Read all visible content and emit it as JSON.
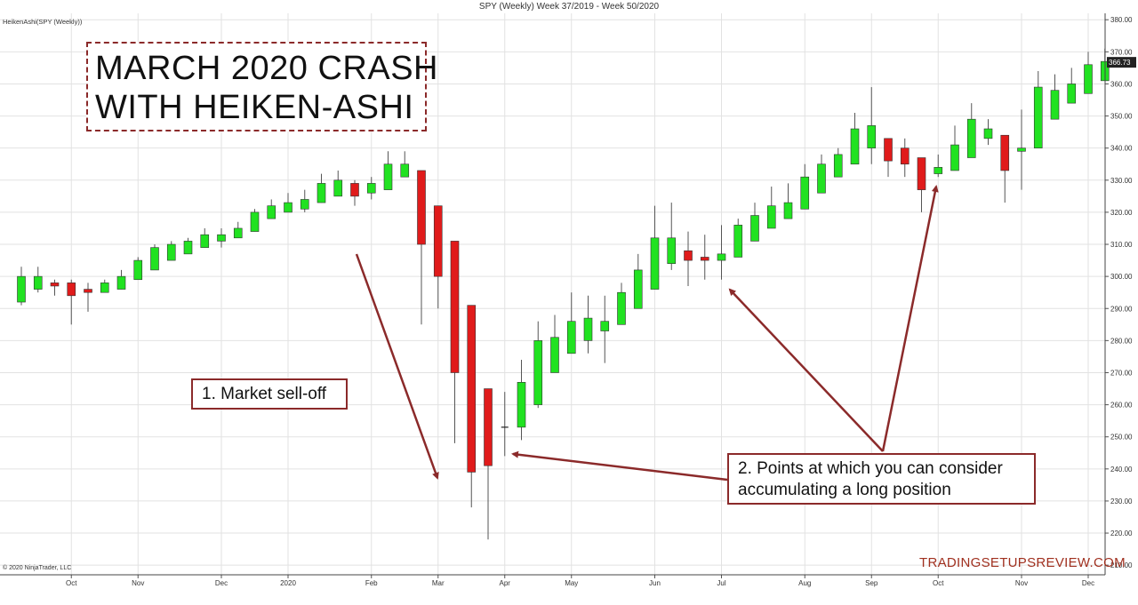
{
  "header": {
    "chart_title": "SPY (Weekly)  Week 37/2019 - Week 50/2020",
    "indicator_label": "HeikenAshi(SPY (Weekly))",
    "copyright": "© 2020 NinjaTrader, LLC",
    "watermark": "TRADINGSETUPSREVIEW.COM"
  },
  "annotations": {
    "title_line1": "MARCH 2020 CRASH",
    "title_line2": "WITH HEIKEN-ASHI",
    "note1": "1. Market sell-off",
    "note2_line1": "2. Points at which you can consider",
    "note2_line2": "accumulating a long position"
  },
  "colors": {
    "up": "#21e221",
    "down": "#e01b1b",
    "wick": "#555555",
    "arrow": "#8b2a2a",
    "grid": "#e2e2e2"
  },
  "chart_data": {
    "type": "candlestick",
    "title": "SPY (Weekly)  Week 37/2019 - Week 50/2020",
    "xlabel": "",
    "ylabel": "",
    "ylim": [
      207,
      382
    ],
    "y_ticks": [
      210,
      220,
      230,
      240,
      250,
      260,
      270,
      280,
      290,
      300,
      310,
      320,
      330,
      340,
      350,
      360,
      370,
      380
    ],
    "y_tick_labels": [
      "210.00",
      "220.00",
      "230.00",
      "240.00",
      "250.00",
      "260.00",
      "270.00",
      "280.00",
      "290.00",
      "300.00",
      "310.00",
      "320.00",
      "330.00",
      "340.00",
      "350.00",
      "360.00",
      "370.00",
      "380.00"
    ],
    "x_labels": [
      "Oct",
      "Nov",
      "Dec",
      "2020",
      "Feb",
      "Mar",
      "Apr",
      "May",
      "Jun",
      "Jul",
      "Aug",
      "Sep",
      "Oct",
      "Nov",
      "Dec"
    ],
    "x_label_week": [
      3,
      7,
      12,
      16,
      21,
      25,
      29,
      33,
      38,
      42,
      47,
      51,
      55,
      60,
      64
    ],
    "last_price_label": "366.73",
    "last_price": 366.73,
    "grid": true,
    "candles": [
      {
        "o": 292.0,
        "c": 300.0,
        "h": 303.0,
        "l": 291.0
      },
      {
        "o": 296.0,
        "c": 300.0,
        "h": 303.0,
        "l": 295.0
      },
      {
        "o": 298.0,
        "c": 297.0,
        "h": 299.0,
        "l": 294.0
      },
      {
        "o": 298.0,
        "c": 294.0,
        "h": 299.0,
        "l": 285.0
      },
      {
        "o": 296.0,
        "c": 295.0,
        "h": 298.0,
        "l": 289.0
      },
      {
        "o": 295.0,
        "c": 298.0,
        "h": 299.0,
        "l": 295.0
      },
      {
        "o": 296.0,
        "c": 300.0,
        "h": 302.0,
        "l": 296.0
      },
      {
        "o": 299.0,
        "c": 305.0,
        "h": 306.0,
        "l": 299.0
      },
      {
        "o": 302.0,
        "c": 309.0,
        "h": 310.0,
        "l": 302.0
      },
      {
        "o": 305.0,
        "c": 310.0,
        "h": 311.0,
        "l": 305.0
      },
      {
        "o": 307.0,
        "c": 311.0,
        "h": 312.0,
        "l": 307.0
      },
      {
        "o": 309.0,
        "c": 313.0,
        "h": 315.0,
        "l": 309.0
      },
      {
        "o": 311.0,
        "c": 313.0,
        "h": 315.0,
        "l": 309.0
      },
      {
        "o": 312.0,
        "c": 315.0,
        "h": 317.0,
        "l": 312.0
      },
      {
        "o": 314.0,
        "c": 320.0,
        "h": 321.0,
        "l": 314.0
      },
      {
        "o": 318.0,
        "c": 322.0,
        "h": 324.0,
        "l": 318.0
      },
      {
        "o": 320.0,
        "c": 323.0,
        "h": 326.0,
        "l": 320.0
      },
      {
        "o": 321.0,
        "c": 324.0,
        "h": 327.0,
        "l": 320.0
      },
      {
        "o": 323.0,
        "c": 329.0,
        "h": 332.0,
        "l": 323.0
      },
      {
        "o": 325.0,
        "c": 330.0,
        "h": 333.0,
        "l": 325.0
      },
      {
        "o": 329.0,
        "c": 325.0,
        "h": 330.0,
        "l": 322.0
      },
      {
        "o": 326.0,
        "c": 329.0,
        "h": 331.0,
        "l": 324.0
      },
      {
        "o": 327.0,
        "c": 335.0,
        "h": 339.0,
        "l": 327.0
      },
      {
        "o": 331.0,
        "c": 335.0,
        "h": 339.0,
        "l": 331.0
      },
      {
        "o": 333.0,
        "c": 310.0,
        "h": 333.0,
        "l": 285.0
      },
      {
        "o": 322.0,
        "c": 300.0,
        "h": 322.0,
        "l": 290.0
      },
      {
        "o": 311.0,
        "c": 270.0,
        "h": 311.0,
        "l": 248.0
      },
      {
        "o": 291.0,
        "c": 239.0,
        "h": 291.0,
        "l": 228.0
      },
      {
        "o": 265.0,
        "c": 241.0,
        "h": 265.0,
        "l": 218.0
      },
      {
        "o": 253.0,
        "c": 253.0,
        "h": 264.0,
        "l": 244.0
      },
      {
        "o": 253.0,
        "c": 267.0,
        "h": 274.0,
        "l": 249.0
      },
      {
        "o": 260.0,
        "c": 280.0,
        "h": 286.0,
        "l": 259.0
      },
      {
        "o": 270.0,
        "c": 281.0,
        "h": 288.0,
        "l": 270.0
      },
      {
        "o": 276.0,
        "c": 286.0,
        "h": 295.0,
        "l": 276.0
      },
      {
        "o": 280.0,
        "c": 287.0,
        "h": 294.0,
        "l": 276.0
      },
      {
        "o": 283.0,
        "c": 286.0,
        "h": 294.0,
        "l": 273.0
      },
      {
        "o": 285.0,
        "c": 295.0,
        "h": 298.0,
        "l": 285.0
      },
      {
        "o": 290.0,
        "c": 302.0,
        "h": 307.0,
        "l": 290.0
      },
      {
        "o": 296.0,
        "c": 312.0,
        "h": 322.0,
        "l": 296.0
      },
      {
        "o": 304.0,
        "c": 312.0,
        "h": 323.0,
        "l": 302.0
      },
      {
        "o": 308.0,
        "c": 305.0,
        "h": 314.0,
        "l": 297.0
      },
      {
        "o": 306.0,
        "c": 305.0,
        "h": 313.0,
        "l": 299.0
      },
      {
        "o": 305.0,
        "c": 307.0,
        "h": 316.0,
        "l": 299.0
      },
      {
        "o": 306.0,
        "c": 316.0,
        "h": 318.0,
        "l": 306.0
      },
      {
        "o": 311.0,
        "c": 319.0,
        "h": 323.0,
        "l": 311.0
      },
      {
        "o": 315.0,
        "c": 322.0,
        "h": 328.0,
        "l": 315.0
      },
      {
        "o": 318.0,
        "c": 323.0,
        "h": 329.0,
        "l": 318.0
      },
      {
        "o": 321.0,
        "c": 331.0,
        "h": 335.0,
        "l": 321.0
      },
      {
        "o": 326.0,
        "c": 335.0,
        "h": 338.0,
        "l": 326.0
      },
      {
        "o": 331.0,
        "c": 338.0,
        "h": 340.0,
        "l": 331.0
      },
      {
        "o": 335.0,
        "c": 346.0,
        "h": 351.0,
        "l": 335.0
      },
      {
        "o": 340.0,
        "c": 347.0,
        "h": 359.0,
        "l": 335.0
      },
      {
        "o": 343.0,
        "c": 336.0,
        "h": 343.0,
        "l": 331.0
      },
      {
        "o": 340.0,
        "c": 335.0,
        "h": 343.0,
        "l": 331.0
      },
      {
        "o": 337.0,
        "c": 327.0,
        "h": 337.0,
        "l": 320.0
      },
      {
        "o": 332.0,
        "c": 334.0,
        "h": 338.0,
        "l": 331.0
      },
      {
        "o": 333.0,
        "c": 341.0,
        "h": 347.0,
        "l": 333.0
      },
      {
        "o": 337.0,
        "c": 349.0,
        "h": 354.0,
        "l": 337.0
      },
      {
        "o": 343.0,
        "c": 346.0,
        "h": 349.0,
        "l": 341.0
      },
      {
        "o": 344.0,
        "c": 333.0,
        "h": 344.0,
        "l": 323.0
      },
      {
        "o": 339.0,
        "c": 340.0,
        "h": 352.0,
        "l": 327.0
      },
      {
        "o": 340.0,
        "c": 359.0,
        "h": 364.0,
        "l": 340.0
      },
      {
        "o": 349.0,
        "c": 358.0,
        "h": 363.0,
        "l": 349.0
      },
      {
        "o": 354.0,
        "c": 360.0,
        "h": 365.0,
        "l": 354.0
      },
      {
        "o": 357.0,
        "c": 366.0,
        "h": 370.0,
        "l": 357.0
      },
      {
        "o": 361.0,
        "c": 367.0,
        "h": 371.0,
        "l": 361.0
      }
    ]
  }
}
